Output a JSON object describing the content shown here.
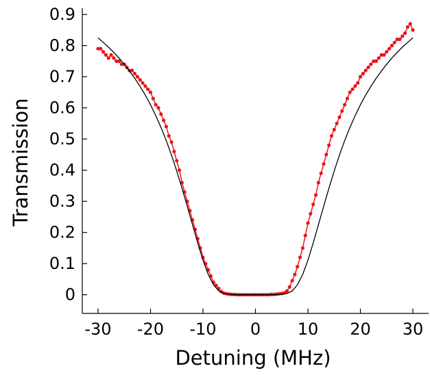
{
  "chart_data": {
    "type": "line",
    "xlabel": "Detuning (MHz)",
    "ylabel": "Transmission",
    "xlim": [
      -33,
      33
    ],
    "ylim": [
      -0.06,
      0.92
    ],
    "x_ticks": [
      -30,
      -20,
      -10,
      0,
      10,
      20,
      30
    ],
    "x_tick_labels": [
      "-30",
      "-20",
      "-10",
      "0",
      "10",
      "20",
      "30"
    ],
    "y_ticks": [
      0,
      0.1,
      0.2,
      0.3,
      0.4,
      0.5,
      0.6,
      0.7,
      0.8,
      0.9
    ],
    "y_tick_labels": [
      "0",
      "0.1",
      "0.2",
      "0.3",
      "0.4",
      "0.5",
      "0.6",
      "0.7",
      "0.8",
      "0.9"
    ],
    "grid": false,
    "series": [
      {
        "color": "#e8141c",
        "style": "points-with-line",
        "x": [
          -30,
          -29.5,
          -29,
          -28.5,
          -28,
          -27.5,
          -27,
          -26.5,
          -26,
          -25.5,
          -25,
          -24.5,
          -24,
          -23.5,
          -23,
          -22.5,
          -22,
          -21.5,
          -21,
          -20.5,
          -20,
          -19.5,
          -19,
          -18.5,
          -18,
          -17.5,
          -17,
          -16.5,
          -16,
          -15.5,
          -15,
          -14.5,
          -14,
          -13.5,
          -13,
          -12.5,
          -12,
          -11.5,
          -11,
          -10.5,
          -10,
          -9.5,
          -9,
          -8.5,
          -8,
          -7.5,
          -7,
          -6.5,
          -6,
          -5.5,
          -5,
          -4.5,
          -4,
          -3.5,
          -3,
          -2.5,
          -2,
          -1.5,
          -1,
          -0.5,
          0,
          0.5,
          1,
          1.5,
          2,
          2.5,
          3,
          3.5,
          4,
          4.5,
          5,
          5.5,
          6,
          6.5,
          7,
          7.5,
          8,
          8.5,
          9,
          9.5,
          10,
          10.5,
          11,
          11.5,
          12,
          12.5,
          13,
          13.5,
          14,
          14.5,
          15,
          15.5,
          16,
          16.5,
          17,
          17.5,
          18,
          18.5,
          19,
          19.5,
          20,
          20.5,
          21,
          21.5,
          22,
          22.5,
          23,
          23.5,
          24,
          24.5,
          25,
          25.5,
          26,
          26.5,
          27,
          27.5,
          28,
          28.5,
          29,
          29.5,
          30
        ],
        "y": [
          0.79,
          0.79,
          0.78,
          0.77,
          0.76,
          0.77,
          0.76,
          0.75,
          0.75,
          0.74,
          0.74,
          0.73,
          0.72,
          0.72,
          0.71,
          0.7,
          0.69,
          0.68,
          0.67,
          0.66,
          0.65,
          0.63,
          0.61,
          0.6,
          0.58,
          0.56,
          0.54,
          0.51,
          0.49,
          0.46,
          0.43,
          0.4,
          0.36,
          0.33,
          0.3,
          0.27,
          0.24,
          0.21,
          0.18,
          0.15,
          0.12,
          0.1,
          0.08,
          0.06,
          0.04,
          0.03,
          0.02,
          0.01,
          0.005,
          0.003,
          0.002,
          0.001,
          0.001,
          0.0,
          0.0,
          0.0,
          0.0,
          0.0,
          0.0,
          0.0,
          0.0,
          0.0,
          0.0,
          0.0,
          0.0,
          0.0,
          0.001,
          0.001,
          0.002,
          0.003,
          0.004,
          0.006,
          0.012,
          0.025,
          0.045,
          0.065,
          0.09,
          0.12,
          0.15,
          0.19,
          0.23,
          0.26,
          0.29,
          0.32,
          0.36,
          0.39,
          0.42,
          0.45,
          0.48,
          0.51,
          0.53,
          0.55,
          0.57,
          0.59,
          0.61,
          0.63,
          0.65,
          0.66,
          0.67,
          0.68,
          0.7,
          0.71,
          0.72,
          0.73,
          0.74,
          0.75,
          0.75,
          0.76,
          0.77,
          0.77,
          0.78,
          0.79,
          0.8,
          0.81,
          0.82,
          0.82,
          0.83,
          0.84,
          0.86,
          0.87,
          0.85
        ]
      },
      {
        "color": "#000000",
        "style": "fit-line",
        "x": [
          -30,
          -29,
          -28,
          -27,
          -26,
          -25,
          -24,
          -23,
          -22,
          -21,
          -20,
          -19,
          -18,
          -17,
          -16,
          -15,
          -14,
          -13,
          -12,
          -11,
          -10,
          -9,
          -8,
          -7,
          -6,
          -5,
          -4,
          -3,
          -2,
          -1,
          0,
          1,
          2,
          3,
          4,
          5,
          6,
          7,
          8,
          9,
          10,
          11,
          12,
          13,
          14,
          15,
          16,
          17,
          18,
          19,
          20,
          21,
          22,
          23,
          24,
          25,
          26,
          27,
          28,
          29,
          30
        ],
        "y": [
          0.825,
          0.81,
          0.795,
          0.778,
          0.76,
          0.74,
          0.718,
          0.695,
          0.669,
          0.641,
          0.61,
          0.575,
          0.537,
          0.495,
          0.448,
          0.397,
          0.342,
          0.284,
          0.225,
          0.166,
          0.111,
          0.065,
          0.032,
          0.012,
          0.004,
          0.001,
          0.0,
          0.0,
          0.0,
          0.0,
          0.0,
          0.0,
          0.0,
          0.0,
          0.0,
          0.001,
          0.004,
          0.012,
          0.032,
          0.065,
          0.111,
          0.166,
          0.225,
          0.284,
          0.342,
          0.397,
          0.448,
          0.495,
          0.537,
          0.575,
          0.61,
          0.641,
          0.669,
          0.695,
          0.718,
          0.74,
          0.76,
          0.778,
          0.795,
          0.81,
          0.825
        ]
      }
    ]
  }
}
